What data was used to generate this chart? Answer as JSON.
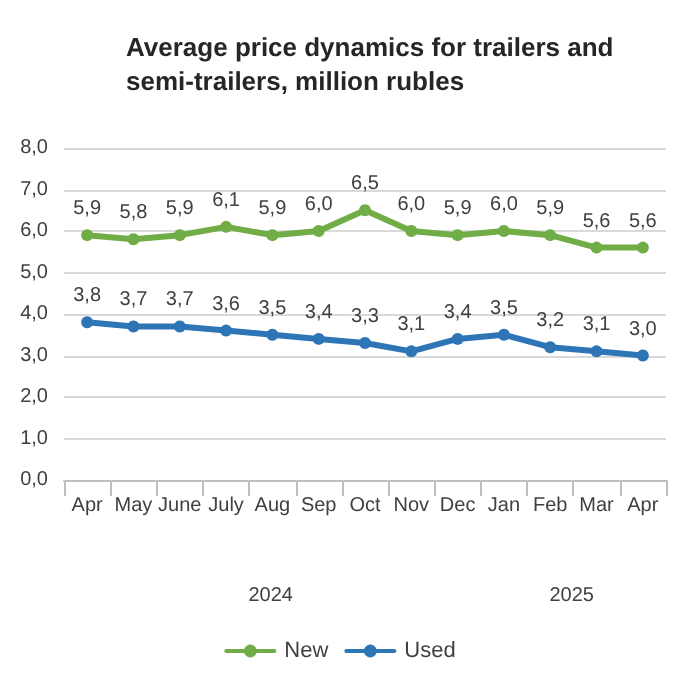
{
  "chart_data": {
    "type": "line",
    "title": "Average price dynamics for trailers and semi-trailers, million rubles",
    "categories": [
      "Apr",
      "May",
      "June",
      "July",
      "Aug",
      "Sep",
      "Oct",
      "Nov",
      "Dec",
      "Jan",
      "Feb",
      "Mar",
      "Apr"
    ],
    "series": [
      {
        "name": "New",
        "color": "#70ad47",
        "values": [
          5.9,
          5.8,
          5.9,
          6.1,
          5.9,
          6.0,
          6.5,
          6.0,
          5.9,
          6.0,
          5.9,
          5.6,
          5.6
        ],
        "value_labels": [
          "5,9",
          "5,8",
          "5,9",
          "6,1",
          "5,9",
          "6,0",
          "6,5",
          "6,0",
          "5,9",
          "6,0",
          "5,9",
          "5,6",
          "5,6"
        ]
      },
      {
        "name": "Used",
        "color": "#2e75b6",
        "values": [
          3.8,
          3.7,
          3.7,
          3.6,
          3.5,
          3.4,
          3.3,
          3.1,
          3.4,
          3.5,
          3.2,
          3.1,
          3.0
        ],
        "value_labels": [
          "3,8",
          "3,7",
          "3,7",
          "3,6",
          "3,5",
          "3,4",
          "3,3",
          "3,1",
          "3,4",
          "3,5",
          "3,2",
          "3,1",
          "3,0"
        ]
      }
    ],
    "ylim": [
      0,
      8
    ],
    "yticks": [
      {
        "value": 0,
        "label": "0,0"
      },
      {
        "value": 1,
        "label": "1,0"
      },
      {
        "value": 2,
        "label": "2,0"
      },
      {
        "value": 3,
        "label": "3,0"
      },
      {
        "value": 4,
        "label": "4,0"
      },
      {
        "value": 5,
        "label": "5,0"
      },
      {
        "value": 6,
        "label": "6,0"
      },
      {
        "value": 7,
        "label": "7,0"
      },
      {
        "value": 8,
        "label": "8,0"
      }
    ],
    "annotations": [
      "2024",
      "2025"
    ],
    "grid": "y",
    "legend": "bottom",
    "marker": "circle",
    "line_style": "solid"
  }
}
